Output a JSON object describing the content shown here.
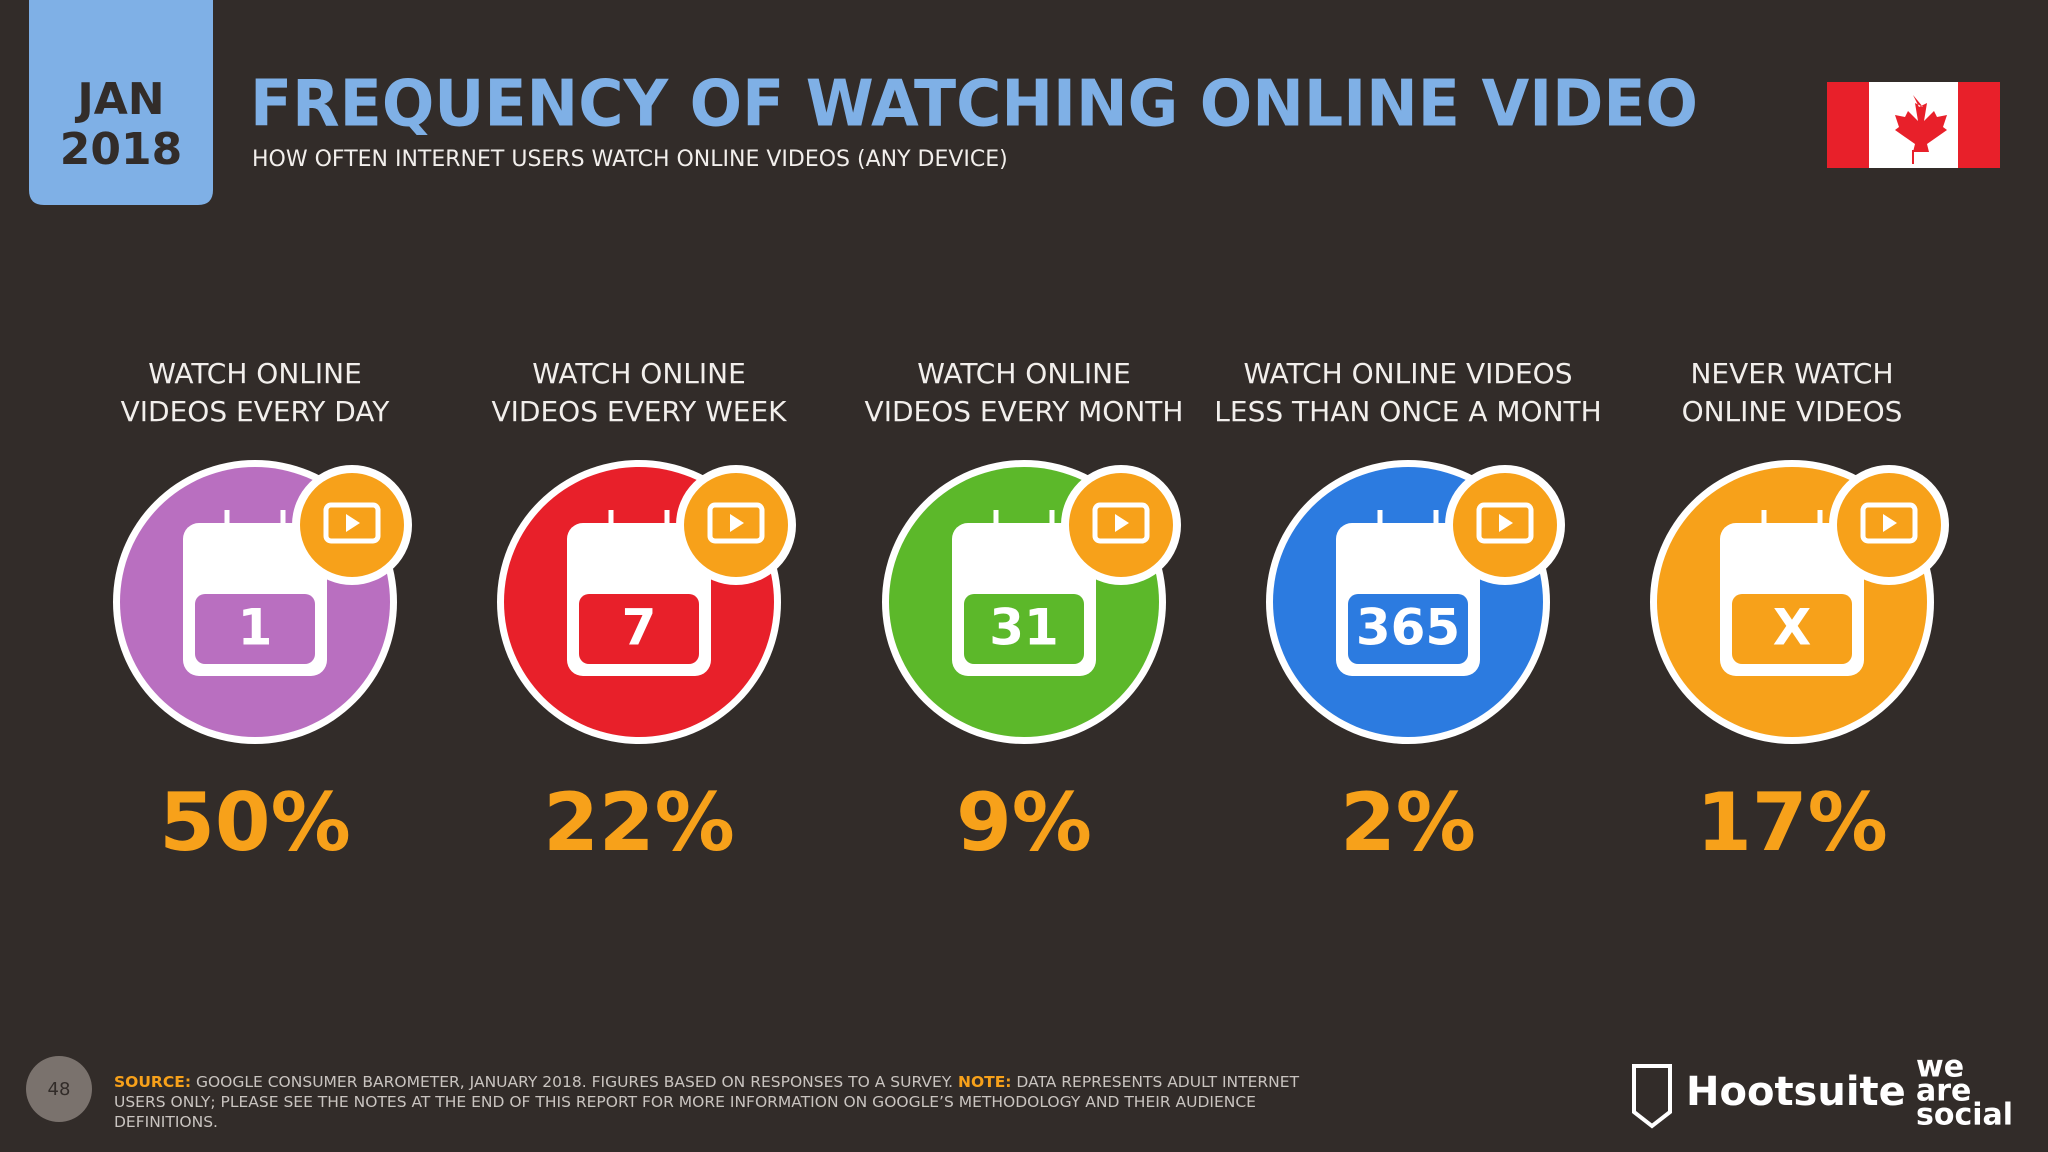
{
  "header": {
    "badge_month": "JAN",
    "badge_year": "2018",
    "title": "FREQUENCY OF WATCHING ONLINE VIDEO",
    "subtitle": "HOW OFTEN INTERNET USERS WATCH ONLINE VIDEOS (ANY DEVICE)"
  },
  "items": [
    {
      "label_lines": [
        "WATCH ONLINE",
        "VIDEOS EVERY DAY"
      ],
      "icon": "1",
      "value": "50%",
      "color": "#b96fc0"
    },
    {
      "label_lines": [
        "WATCH ONLINE",
        "VIDEOS EVERY WEEK"
      ],
      "icon": "7",
      "value": "22%",
      "color": "#e8202a"
    },
    {
      "label_lines": [
        "WATCH ONLINE",
        "VIDEOS EVERY MONTH"
      ],
      "icon": "31",
      "value": "9%",
      "color": "#5cb82a"
    },
    {
      "label_lines": [
        "WATCH ONLINE VIDEOS",
        "LESS THAN ONCE A MONTH"
      ],
      "icon": "365",
      "value": "2%",
      "color": "#2c7be0"
    },
    {
      "label_lines": [
        "NEVER WATCH",
        "ONLINE VIDEOS"
      ],
      "icon": "X",
      "value": "17%",
      "color": "#f7a11a"
    }
  ],
  "footer": {
    "page": "48",
    "source_label": "SOURCE:",
    "source_text": " GOOGLE CONSUMER BAROMETER, JANUARY 2018. FIGURES BASED ON RESPONSES TO A SURVEY. ",
    "note_label": "NOTE:",
    "note_text": " DATA REPRESENTS ADULT INTERNET USERS ONLY; PLEASE SEE THE NOTES AT THE END OF THIS REPORT FOR MORE INFORMATION ON GOOGLE’S METHODOLOGY AND THEIR AUDIENCE DEFINITIONS."
  },
  "brand": {
    "hootsuite": "Hootsuite",
    "we_are_social": [
      "we",
      "are",
      "social"
    ]
  }
}
